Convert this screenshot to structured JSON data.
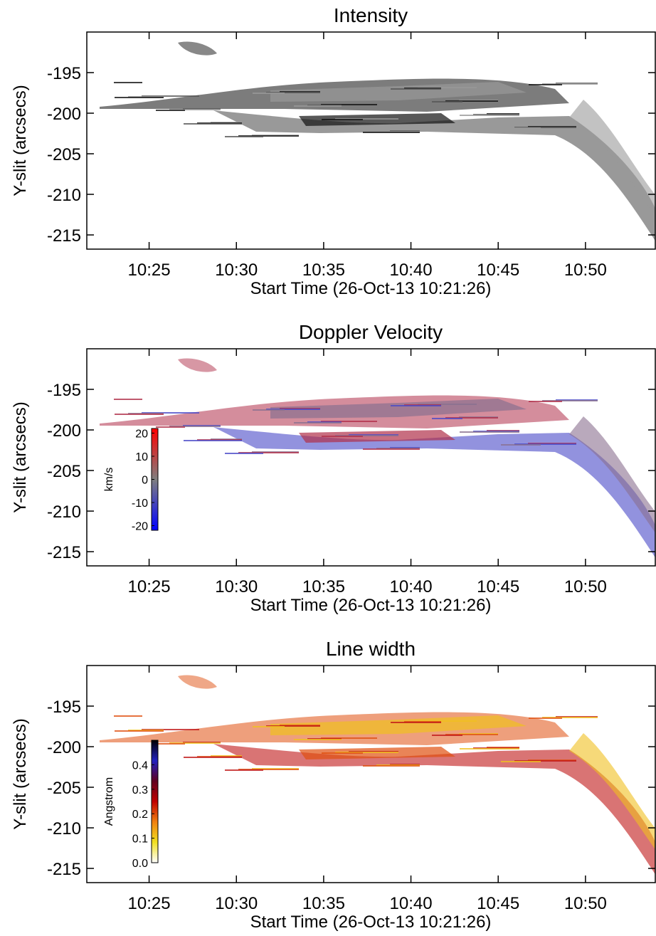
{
  "chart_data": [
    {
      "type": "heatmap",
      "title": "Intensity",
      "x_label": "Start Time (26-Oct-13 10:21:26)",
      "y_label": "Y-slit (arcsecs)",
      "xlim": [
        21.43,
        54
      ],
      "xticks": [
        {
          "value": 25,
          "label": "10:25"
        },
        {
          "value": 30,
          "label": "10:30"
        },
        {
          "value": 35,
          "label": "10:35"
        },
        {
          "value": 40,
          "label": "10:40"
        },
        {
          "value": 45,
          "label": "10:45"
        },
        {
          "value": 50,
          "label": "10:50"
        }
      ],
      "ylim": [
        -216.75,
        -190
      ],
      "yticks": [
        -215,
        -210,
        -205,
        -200,
        -195
      ],
      "colors": [
        "#111111",
        "#555555",
        "#999999"
      ]
    },
    {
      "type": "heatmap",
      "title": "Doppler Velocity",
      "x_label": "Start Time (26-Oct-13 10:21:26)",
      "y_label": "Y-slit (arcsecs)",
      "xlim": [
        21.43,
        54
      ],
      "xticks": [
        {
          "value": 25,
          "label": "10:25"
        },
        {
          "value": 30,
          "label": "10:30"
        },
        {
          "value": 35,
          "label": "10:35"
        },
        {
          "value": 40,
          "label": "10:40"
        },
        {
          "value": 45,
          "label": "10:45"
        },
        {
          "value": 50,
          "label": "10:50"
        }
      ],
      "ylim": [
        -216.75,
        -190
      ],
      "yticks": [
        -215,
        -210,
        -205,
        -200,
        -195
      ],
      "colors": [
        "#b0304a",
        "#4a4ac8",
        "#8a7090"
      ],
      "colorbar": {
        "label": "km/s",
        "lim": [
          -22,
          22
        ],
        "ticks": [
          20,
          10,
          0,
          -10,
          -20
        ],
        "colors": [
          "#0000ff",
          "#7f7f7f",
          "#ff0000"
        ]
      }
    },
    {
      "type": "heatmap",
      "title": "Line width",
      "x_label": "Start Time (26-Oct-13 10:21:26)",
      "y_label": "Y-slit (arcsecs)",
      "xlim": [
        21.43,
        54
      ],
      "xticks": [
        {
          "value": 25,
          "label": "10:25"
        },
        {
          "value": 30,
          "label": "10:30"
        },
        {
          "value": 35,
          "label": "10:35"
        },
        {
          "value": 40,
          "label": "10:40"
        },
        {
          "value": 45,
          "label": "10:45"
        },
        {
          "value": 50,
          "label": "10:50"
        }
      ],
      "ylim": [
        -216.75,
        -190
      ],
      "yticks": [
        -215,
        -210,
        -205,
        -200,
        -195
      ],
      "colors": [
        "#e05010",
        "#c01818",
        "#f0c020"
      ],
      "colorbar": {
        "label": "Angstrom",
        "lim": [
          0,
          0.5
        ],
        "ticks": [
          {
            "value": 0.4,
            "label": "0.4"
          },
          {
            "value": 0.3,
            "label": "0.3"
          },
          {
            "value": 0.2,
            "label": "0.2"
          },
          {
            "value": 0.1,
            "label": "0.1"
          },
          {
            "value": 0,
            "label": "0.0"
          }
        ],
        "colors": [
          "#ffffff",
          "#f0e020",
          "#f08010",
          "#c00000",
          "#600020",
          "#2020c0",
          "#000000"
        ]
      }
    }
  ]
}
